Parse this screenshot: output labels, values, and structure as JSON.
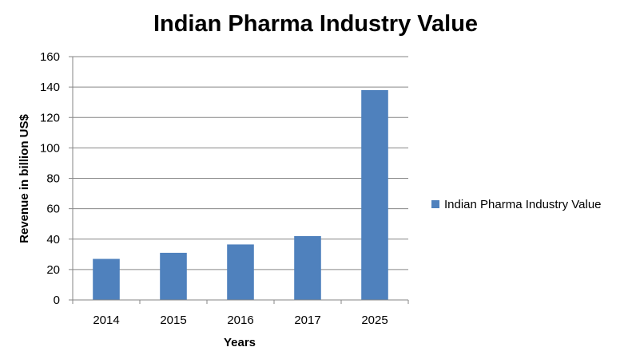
{
  "chart_data": {
    "type": "bar",
    "title": "Indian Pharma Industry Value",
    "xlabel": "Years",
    "ylabel": "Revenue in billion US$",
    "categories": [
      "2014",
      "2015",
      "2016",
      "2017",
      "2025"
    ],
    "series": [
      {
        "name": "Indian Pharma Industry Value",
        "values": [
          27,
          31,
          36.5,
          42,
          138
        ],
        "color": "#4F81BD"
      }
    ],
    "ylim": [
      0,
      160
    ],
    "yticks": [
      0,
      20,
      40,
      60,
      80,
      100,
      120,
      140,
      160
    ],
    "grid": true,
    "legend_position": "right"
  }
}
